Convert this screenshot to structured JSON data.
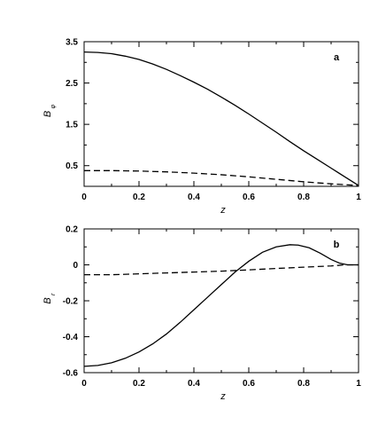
{
  "chart_data": [
    {
      "type": "line",
      "panel_label": "a",
      "xlabel": "z",
      "ylabel": "B",
      "ylabel_subscript": "φ",
      "xlim": [
        0,
        1
      ],
      "ylim": [
        0,
        3.5
      ],
      "xticks": [
        0,
        0.2,
        0.4,
        0.6,
        0.8,
        1
      ],
      "xtick_labels": [
        "0",
        "0.2",
        "0.4",
        "0.6",
        "0.8",
        "1"
      ],
      "yticks": [
        0.5,
        1.5,
        2.5,
        3.5
      ],
      "ytick_labels": [
        "0.5",
        "1.5",
        "2.5",
        "3.5"
      ],
      "minor_yticks": [
        1.0,
        2.0,
        3.0
      ],
      "grid": false,
      "series": [
        {
          "style": "solid",
          "x": [
            0,
            0.05,
            0.1,
            0.15,
            0.2,
            0.25,
            0.3,
            0.35,
            0.4,
            0.45,
            0.5,
            0.55,
            0.6,
            0.65,
            0.7,
            0.75,
            0.8,
            0.85,
            0.9,
            0.95,
            1.0
          ],
          "y": [
            3.25,
            3.24,
            3.21,
            3.15,
            3.07,
            2.96,
            2.83,
            2.68,
            2.52,
            2.35,
            2.16,
            1.96,
            1.75,
            1.53,
            1.31,
            1.08,
            0.86,
            0.65,
            0.44,
            0.23,
            0.02
          ]
        },
        {
          "style": "dashed",
          "x": [
            0,
            0.1,
            0.2,
            0.3,
            0.4,
            0.5,
            0.6,
            0.7,
            0.8,
            0.9,
            1.0
          ],
          "y": [
            0.38,
            0.38,
            0.37,
            0.35,
            0.32,
            0.28,
            0.23,
            0.17,
            0.11,
            0.06,
            0.02
          ]
        }
      ]
    },
    {
      "type": "line",
      "panel_label": "b",
      "xlabel": "z",
      "ylabel": "B",
      "ylabel_subscript": "r",
      "xlim": [
        0,
        1
      ],
      "ylim": [
        -0.6,
        0.2
      ],
      "xticks": [
        0,
        0.2,
        0.4,
        0.6,
        0.8,
        1
      ],
      "xtick_labels": [
        "0",
        "0.2",
        "0.4",
        "0.6",
        "0.8",
        "1"
      ],
      "yticks": [
        -0.6,
        -0.4,
        -0.2,
        0,
        0.2
      ],
      "ytick_labels": [
        "-0.6",
        "-0.4",
        "-0.2",
        "0",
        "0.2"
      ],
      "minor_yticks": [
        -0.5,
        -0.3,
        -0.1,
        0.1
      ],
      "grid": false,
      "series": [
        {
          "style": "solid",
          "x": [
            0,
            0.05,
            0.1,
            0.15,
            0.2,
            0.25,
            0.3,
            0.35,
            0.4,
            0.45,
            0.5,
            0.55,
            0.6,
            0.65,
            0.7,
            0.75,
            0.78,
            0.82,
            0.86,
            0.9,
            0.93,
            0.96,
            1.0
          ],
          "y": [
            -0.565,
            -0.56,
            -0.545,
            -0.52,
            -0.485,
            -0.44,
            -0.385,
            -0.32,
            -0.25,
            -0.18,
            -0.11,
            -0.04,
            0.02,
            0.07,
            0.1,
            0.112,
            0.11,
            0.095,
            0.065,
            0.03,
            0.01,
            0.0,
            0.0
          ]
        },
        {
          "style": "dashed",
          "x": [
            0,
            0.1,
            0.2,
            0.3,
            0.4,
            0.5,
            0.6,
            0.7,
            0.8,
            0.9,
            0.95,
            1.0
          ],
          "y": [
            -0.055,
            -0.055,
            -0.05,
            -0.045,
            -0.04,
            -0.035,
            -0.028,
            -0.02,
            -0.013,
            -0.006,
            0.0,
            0.0
          ]
        }
      ]
    }
  ]
}
